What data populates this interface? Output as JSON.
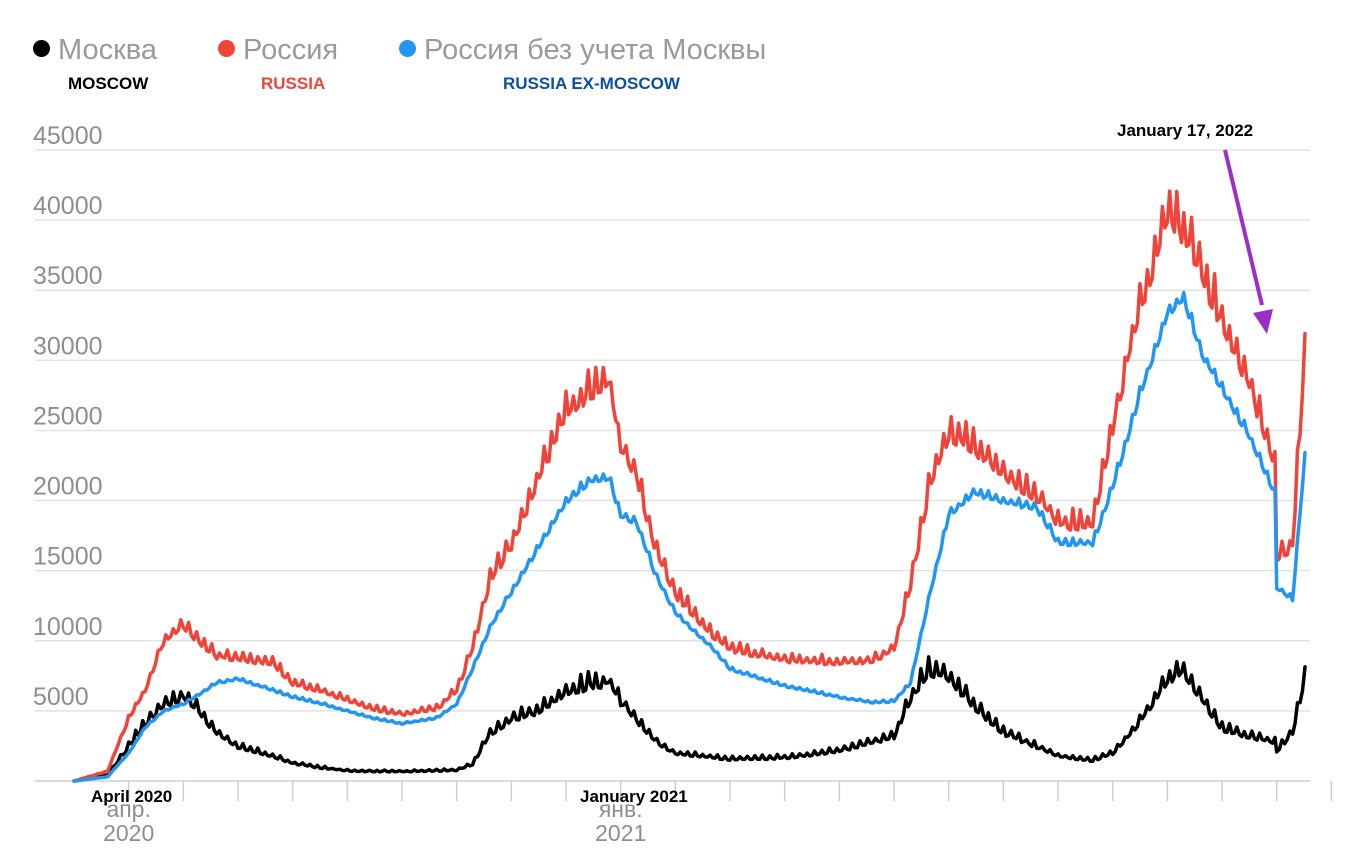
{
  "legend": [
    {
      "label_ru": "Москва",
      "label_en": "MOSCOW",
      "dot_color": "#000000",
      "en_color": "#000000"
    },
    {
      "label_ru": "Россия",
      "label_en": "RUSSIA",
      "dot_color": "#f0443a",
      "en_color": "#f0443a"
    },
    {
      "label_ru": "Россия без учета Москвы",
      "label_en": "RUSSIA EX-MOSCOW",
      "dot_color": "#2196f3",
      "en_color": "#0d4fa8"
    }
  ],
  "annotations": {
    "april_2020": "April 2020",
    "january_2021": "January 2021",
    "january_17_2022": "January 17, 2022",
    "arrow_color": "#9b30c8"
  },
  "chart_data": {
    "type": "line",
    "x_unit": "month",
    "x_ticks": [
      {
        "x": "2020-04",
        "label": [
          "апр.",
          "2020"
        ]
      },
      {
        "x": "2021-01",
        "label": [
          "янв.",
          "2021"
        ]
      }
    ],
    "ylim": [
      0,
      45000
    ],
    "y_ticks": [
      5000,
      10000,
      15000,
      20000,
      25000,
      30000,
      35000,
      40000,
      45000
    ],
    "grid": true,
    "legend_position": "top-left",
    "series": [
      {
        "name": "Москва",
        "color": "#000000",
        "points": [
          [
            "2020-03",
            0
          ],
          [
            "2020-03-20",
            400
          ],
          [
            "2020-04",
            2500
          ],
          [
            "2020-04-10",
            4200
          ],
          [
            "2020-04-20",
            5500
          ],
          [
            "2020-05",
            6200
          ],
          [
            "2020-05-10",
            5000
          ],
          [
            "2020-05-20",
            3500
          ],
          [
            "2020-06",
            2500
          ],
          [
            "2020-06-20",
            1800
          ],
          [
            "2020-07",
            1300
          ],
          [
            "2020-07-15",
            1000
          ],
          [
            "2020-08",
            750
          ],
          [
            "2020-08-15",
            700
          ],
          [
            "2020-09",
            700
          ],
          [
            "2020-09-20",
            750
          ],
          [
            "2020-10",
            800
          ],
          [
            "2020-10-10",
            1200
          ],
          [
            "2020-10-20",
            3500
          ],
          [
            "2020-11",
            4500
          ],
          [
            "2020-11-15",
            5000
          ],
          [
            "2020-12",
            6500
          ],
          [
            "2020-12-15",
            7000
          ],
          [
            "2020-12-25",
            7200
          ],
          [
            "2021-01",
            5800
          ],
          [
            "2021-01-10",
            4500
          ],
          [
            "2021-01-20",
            3000
          ],
          [
            "2021-02",
            2000
          ],
          [
            "2021-02-20",
            1700
          ],
          [
            "2021-03",
            1600
          ],
          [
            "2021-04",
            1700
          ],
          [
            "2021-05",
            2200
          ],
          [
            "2021-05-20",
            2800
          ],
          [
            "2021-06",
            3200
          ],
          [
            "2021-06-10",
            6000
          ],
          [
            "2021-06-20",
            8000
          ],
          [
            "2021-07",
            7500
          ],
          [
            "2021-07-15",
            5500
          ],
          [
            "2021-08",
            3500
          ],
          [
            "2021-08-20",
            2500
          ],
          [
            "2021-09",
            1800
          ],
          [
            "2021-09-20",
            1500
          ],
          [
            "2021-10",
            2000
          ],
          [
            "2021-10-15",
            4000
          ],
          [
            "2021-11",
            7500
          ],
          [
            "2021-11-10",
            8000
          ],
          [
            "2021-11-20",
            6000
          ],
          [
            "2021-12",
            3800
          ],
          [
            "2021-12-15",
            3300
          ],
          [
            "2021-12-31",
            2800
          ],
          [
            "2022-01",
            2200
          ],
          [
            "2022-01-10",
            3500
          ],
          [
            "2022-01-17",
            7600
          ]
        ]
      },
      {
        "name": "Россия",
        "color": "#f0443a",
        "points": [
          [
            "2020-03",
            0
          ],
          [
            "2020-03-20",
            700
          ],
          [
            "2020-04",
            4500
          ],
          [
            "2020-04-10",
            6500
          ],
          [
            "2020-04-20",
            10000
          ],
          [
            "2020-05",
            11200
          ],
          [
            "2020-05-10",
            10000
          ],
          [
            "2020-05-20",
            9000
          ],
          [
            "2020-06",
            8800
          ],
          [
            "2020-06-20",
            8500
          ],
          [
            "2020-07",
            7000
          ],
          [
            "2020-07-15",
            6600
          ],
          [
            "2020-08",
            5800
          ],
          [
            "2020-08-15",
            5200
          ],
          [
            "2020-09",
            4800
          ],
          [
            "2020-09-20",
            5200
          ],
          [
            "2020-10",
            6500
          ],
          [
            "2020-10-10",
            9500
          ],
          [
            "2020-10-20",
            14500
          ],
          [
            "2020-11",
            17000
          ],
          [
            "2020-11-15",
            21500
          ],
          [
            "2020-12",
            26500
          ],
          [
            "2020-12-15",
            28000
          ],
          [
            "2020-12-25",
            29000
          ],
          [
            "2021-01",
            24000
          ],
          [
            "2021-01-10",
            22000
          ],
          [
            "2021-01-20",
            17000
          ],
          [
            "2021-02",
            13500
          ],
          [
            "2021-02-20",
            10500
          ],
          [
            "2021-03",
            9500
          ],
          [
            "2021-04",
            8700
          ],
          [
            "2021-05",
            8500
          ],
          [
            "2021-05-20",
            8700
          ],
          [
            "2021-06",
            9500
          ],
          [
            "2021-06-10",
            14000
          ],
          [
            "2021-06-20",
            21000
          ],
          [
            "2021-07",
            25000
          ],
          [
            "2021-07-15",
            24000
          ],
          [
            "2021-08",
            22000
          ],
          [
            "2021-08-20",
            20500
          ],
          [
            "2021-09",
            18500
          ],
          [
            "2021-09-20",
            18500
          ],
          [
            "2021-10",
            25500
          ],
          [
            "2021-10-15",
            33500
          ],
          [
            "2021-11",
            40500
          ],
          [
            "2021-11-10",
            39500
          ],
          [
            "2021-11-20",
            36500
          ],
          [
            "2021-12",
            33000
          ],
          [
            "2021-12-15",
            29000
          ],
          [
            "2021-12-31",
            23000
          ],
          [
            "2022-01",
            16000
          ],
          [
            "2022-01-10",
            17000
          ],
          [
            "2022-01-17",
            30800
          ]
        ]
      },
      {
        "name": "Россия без учета Москвы",
        "color": "#2196f3",
        "points": [
          [
            "2020-03",
            0
          ],
          [
            "2020-03-20",
            300
          ],
          [
            "2020-04",
            2000
          ],
          [
            "2020-04-10",
            3800
          ],
          [
            "2020-04-20",
            5000
          ],
          [
            "2020-05",
            5500
          ],
          [
            "2020-05-10",
            6200
          ],
          [
            "2020-05-20",
            7000
          ],
          [
            "2020-06",
            7300
          ],
          [
            "2020-06-20",
            6500
          ],
          [
            "2020-07",
            6000
          ],
          [
            "2020-07-15",
            5600
          ],
          [
            "2020-08",
            5000
          ],
          [
            "2020-08-15",
            4500
          ],
          [
            "2020-09",
            4100
          ],
          [
            "2020-09-20",
            4500
          ],
          [
            "2020-10",
            5500
          ],
          [
            "2020-10-10",
            8000
          ],
          [
            "2020-10-20",
            11000
          ],
          [
            "2020-11",
            13500
          ],
          [
            "2020-11-15",
            16500
          ],
          [
            "2020-12",
            20000
          ],
          [
            "2020-12-15",
            21500
          ],
          [
            "2020-12-25",
            21700
          ],
          [
            "2021-01",
            19000
          ],
          [
            "2021-01-10",
            18500
          ],
          [
            "2021-01-20",
            15000
          ],
          [
            "2021-02",
            12000
          ],
          [
            "2021-02-20",
            9500
          ],
          [
            "2021-03",
            8000
          ],
          [
            "2021-04",
            6800
          ],
          [
            "2021-05",
            6000
          ],
          [
            "2021-05-20",
            5600
          ],
          [
            "2021-06",
            5700
          ],
          [
            "2021-06-10",
            7000
          ],
          [
            "2021-06-20",
            13000
          ],
          [
            "2021-07",
            19000
          ],
          [
            "2021-07-15",
            20600
          ],
          [
            "2021-08",
            20000
          ],
          [
            "2021-08-20",
            19500
          ],
          [
            "2021-09",
            17000
          ],
          [
            "2021-09-20",
            17000
          ],
          [
            "2021-10",
            21000
          ],
          [
            "2021-10-15",
            27000
          ],
          [
            "2021-11",
            33500
          ],
          [
            "2021-11-10",
            34500
          ],
          [
            "2021-11-20",
            30500
          ],
          [
            "2021-12",
            28000
          ],
          [
            "2021-12-15",
            25000
          ],
          [
            "2021-12-31",
            20500
          ],
          [
            "2022-01",
            13800
          ],
          [
            "2022-01-10",
            13000
          ],
          [
            "2022-01-17",
            23200
          ]
        ]
      }
    ]
  }
}
